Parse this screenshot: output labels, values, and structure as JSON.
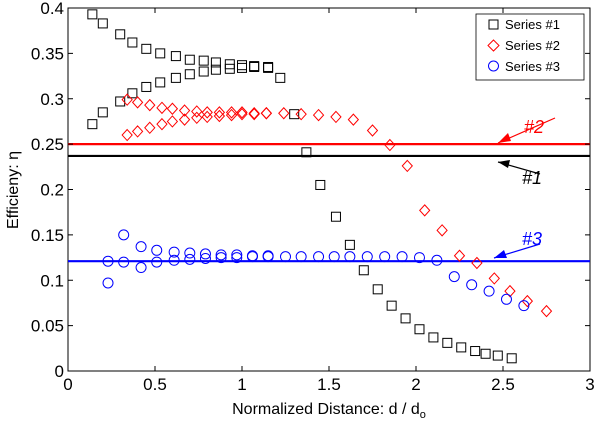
{
  "chart_data": {
    "type": "scatter",
    "xlabel": "Normalized Distance: d / d",
    "xlabel_sub": "o",
    "ylabel": "Efficieny: η",
    "xlim": [
      0,
      3
    ],
    "ylim": [
      0,
      0.4
    ],
    "xticks": [
      "0",
      "0.5",
      "1",
      "1.5",
      "2",
      "2.5",
      "3"
    ],
    "yticks": [
      "0",
      "0.05",
      "0.1",
      "0.15",
      "0.2",
      "0.25",
      "0.3",
      "0.35",
      "0.4"
    ],
    "xtick_values": [
      0,
      0.5,
      1,
      1.5,
      2,
      2.5,
      3
    ],
    "ytick_values": [
      0,
      0.05,
      0.1,
      0.15,
      0.2,
      0.25,
      0.3,
      0.35,
      0.4
    ],
    "grid": false,
    "legend_position": "top-right",
    "series": [
      {
        "name": "Series #1",
        "marker": "square",
        "color": "#000000",
        "x": [
          0.14,
          0.2,
          0.3,
          0.37,
          0.45,
          0.53,
          0.62,
          0.7,
          0.78,
          0.85,
          0.93,
          1.0,
          1.07,
          1.15,
          0.14,
          0.2,
          0.3,
          0.37,
          0.45,
          0.53,
          0.62,
          0.7,
          0.78,
          0.85,
          0.93,
          1.0,
          1.07,
          1.15,
          1.22,
          1.3,
          1.37,
          1.45,
          1.54,
          1.62,
          1.7,
          1.78,
          1.86,
          1.94,
          2.02,
          2.1,
          2.18,
          2.26,
          2.34,
          2.4,
          2.47,
          2.55
        ],
        "y": [
          0.393,
          0.383,
          0.371,
          0.362,
          0.355,
          0.35,
          0.347,
          0.343,
          0.342,
          0.34,
          0.338,
          0.337,
          0.336,
          0.335,
          0.272,
          0.285,
          0.297,
          0.306,
          0.313,
          0.318,
          0.323,
          0.327,
          0.33,
          0.332,
          0.333,
          0.334,
          0.335,
          0.334,
          0.323,
          0.283,
          0.241,
          0.205,
          0.17,
          0.139,
          0.111,
          0.09,
          0.072,
          0.058,
          0.046,
          0.037,
          0.031,
          0.026,
          0.022,
          0.019,
          0.017,
          0.014
        ]
      },
      {
        "name": "Series #2",
        "marker": "diamond",
        "color": "#ff0000",
        "x": [
          0.34,
          0.4,
          0.47,
          0.54,
          0.6,
          0.67,
          0.74,
          0.8,
          0.87,
          0.94,
          1.0,
          1.07,
          1.14,
          0.34,
          0.4,
          0.47,
          0.54,
          0.6,
          0.67,
          0.74,
          0.8,
          0.87,
          0.94,
          1.0,
          1.07,
          1.14,
          1.24,
          1.34,
          1.44,
          1.54,
          1.64,
          1.75,
          1.85,
          1.95,
          2.05,
          2.15,
          2.25,
          2.35,
          2.45,
          2.54,
          2.64,
          2.75
        ],
        "y": [
          0.299,
          0.296,
          0.293,
          0.29,
          0.289,
          0.287,
          0.286,
          0.285,
          0.285,
          0.285,
          0.285,
          0.284,
          0.284,
          0.26,
          0.264,
          0.268,
          0.272,
          0.275,
          0.277,
          0.279,
          0.28,
          0.281,
          0.282,
          0.283,
          0.283,
          0.284,
          0.284,
          0.283,
          0.282,
          0.28,
          0.277,
          0.265,
          0.249,
          0.226,
          0.177,
          0.155,
          0.127,
          0.119,
          0.102,
          0.088,
          0.077,
          0.066
        ]
      },
      {
        "name": "Series #3",
        "marker": "circle",
        "color": "#0000ff",
        "x": [
          0.23,
          0.32,
          0.42,
          0.51,
          0.61,
          0.7,
          0.79,
          0.88,
          0.97,
          1.06,
          1.15,
          0.23,
          0.32,
          0.42,
          0.51,
          0.61,
          0.7,
          0.79,
          0.88,
          0.97,
          1.06,
          1.15,
          1.25,
          1.34,
          1.44,
          1.53,
          1.62,
          1.72,
          1.82,
          1.92,
          2.02,
          2.12,
          2.22,
          2.32,
          2.42,
          2.52,
          2.62
        ],
        "y": [
          0.097,
          0.15,
          0.137,
          0.133,
          0.131,
          0.13,
          0.129,
          0.128,
          0.128,
          0.127,
          0.127,
          0.121,
          0.12,
          0.114,
          0.12,
          0.122,
          0.123,
          0.124,
          0.125,
          0.125,
          0.126,
          0.126,
          0.126,
          0.126,
          0.126,
          0.126,
          0.126,
          0.126,
          0.126,
          0.126,
          0.125,
          0.122,
          0.104,
          0.095,
          0.088,
          0.079,
          0.072
        ]
      }
    ],
    "hlines": [
      {
        "label": "#2",
        "y": 0.25,
        "color": "#ff0000"
      },
      {
        "label": "#1",
        "y": 0.237,
        "color": "#000000"
      },
      {
        "label": "#3",
        "y": 0.121,
        "color": "#0000ff"
      }
    ]
  }
}
